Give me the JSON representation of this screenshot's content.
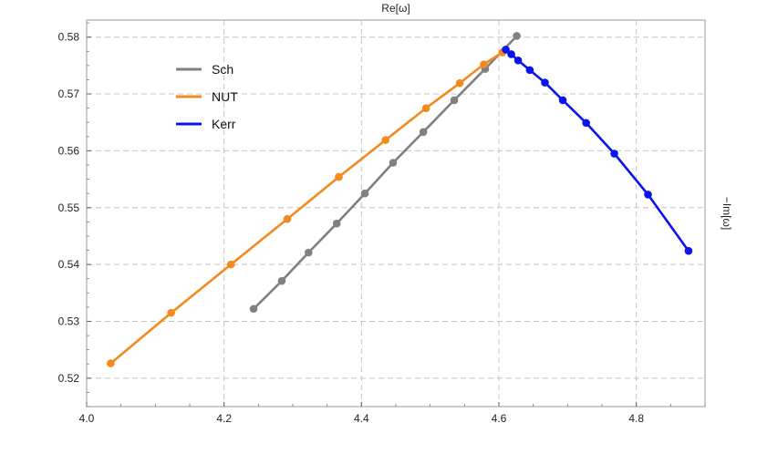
{
  "chart_data": {
    "type": "line",
    "title": "",
    "xlabel": "Re[ω]",
    "ylabel": "−Im[ω]",
    "xlim": [
      4.0,
      4.9
    ],
    "ylim": [
      0.515,
      0.583
    ],
    "x_ticks": [
      4.0,
      4.2,
      4.4,
      4.6,
      4.8
    ],
    "x_tick_labels": [
      "4.0",
      "4.2",
      "4.4",
      "4.6",
      "4.8"
    ],
    "y_ticks": [
      0.52,
      0.53,
      0.54,
      0.55,
      0.56,
      0.57,
      0.58
    ],
    "y_tick_labels": [
      "0.52",
      "0.53",
      "0.54",
      "0.55",
      "0.56",
      "0.57",
      "0.58"
    ],
    "grid": true,
    "legend_position": "top-left",
    "series": [
      {
        "name": "Sch",
        "color": "#808080",
        "x": [
          4.243,
          4.284,
          4.323,
          4.364,
          4.405,
          4.446,
          4.49,
          4.535,
          4.58,
          4.626
        ],
        "y": [
          0.5322,
          0.5371,
          0.5421,
          0.5472,
          0.5525,
          0.5579,
          0.5633,
          0.5689,
          0.5744,
          0.5802
        ]
      },
      {
        "name": "NUT",
        "color": "#F28A1E",
        "x": [
          4.035,
          4.123,
          4.21,
          4.292,
          4.367,
          4.435,
          4.494,
          4.543,
          4.578,
          4.605
        ],
        "y": [
          0.5226,
          0.5315,
          0.54,
          0.548,
          0.5554,
          0.5619,
          0.5675,
          0.5719,
          0.5752,
          0.5773
        ]
      },
      {
        "name": "Kerr",
        "color": "#0A14F0",
        "x": [
          4.61,
          4.618,
          4.628,
          4.645,
          4.667,
          4.693,
          4.727,
          4.768,
          4.817,
          4.876
        ],
        "y": [
          0.5778,
          0.577,
          0.5759,
          0.5742,
          0.572,
          0.5689,
          0.5649,
          0.5595,
          0.5523,
          0.5424
        ]
      }
    ]
  }
}
